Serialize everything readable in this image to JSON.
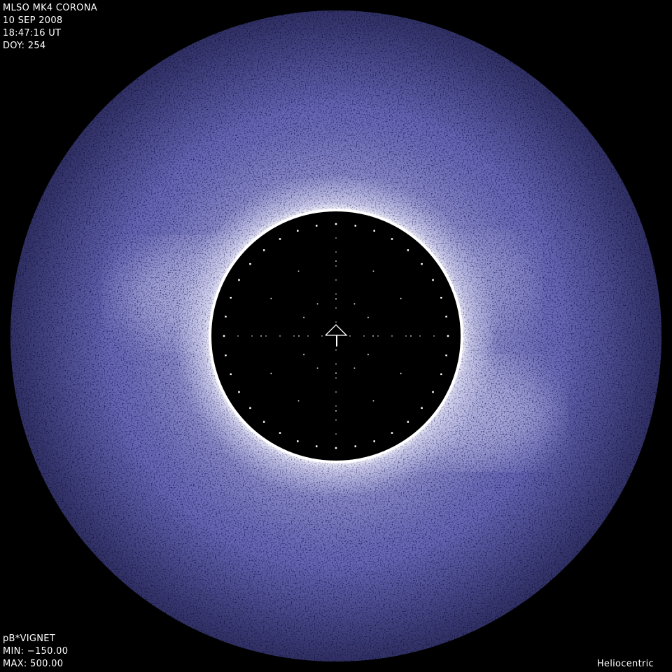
{
  "header": {
    "instrument": "MLSO MK4 CORONA",
    "date": "10 SEP 2008",
    "time": "18:47:16 UT",
    "doy": "DOY: 254"
  },
  "footer": {
    "product": "pB*VIGNET",
    "min": "MIN: −150.00",
    "max": "MAX: 500.00",
    "frame": "Heliocentric"
  },
  "colors": {
    "background": "#000000",
    "corona": "#5858a8",
    "streamer": "#c8c8ec",
    "limb": "#ffffff"
  },
  "icons": [
    "north-arrow-icon"
  ]
}
